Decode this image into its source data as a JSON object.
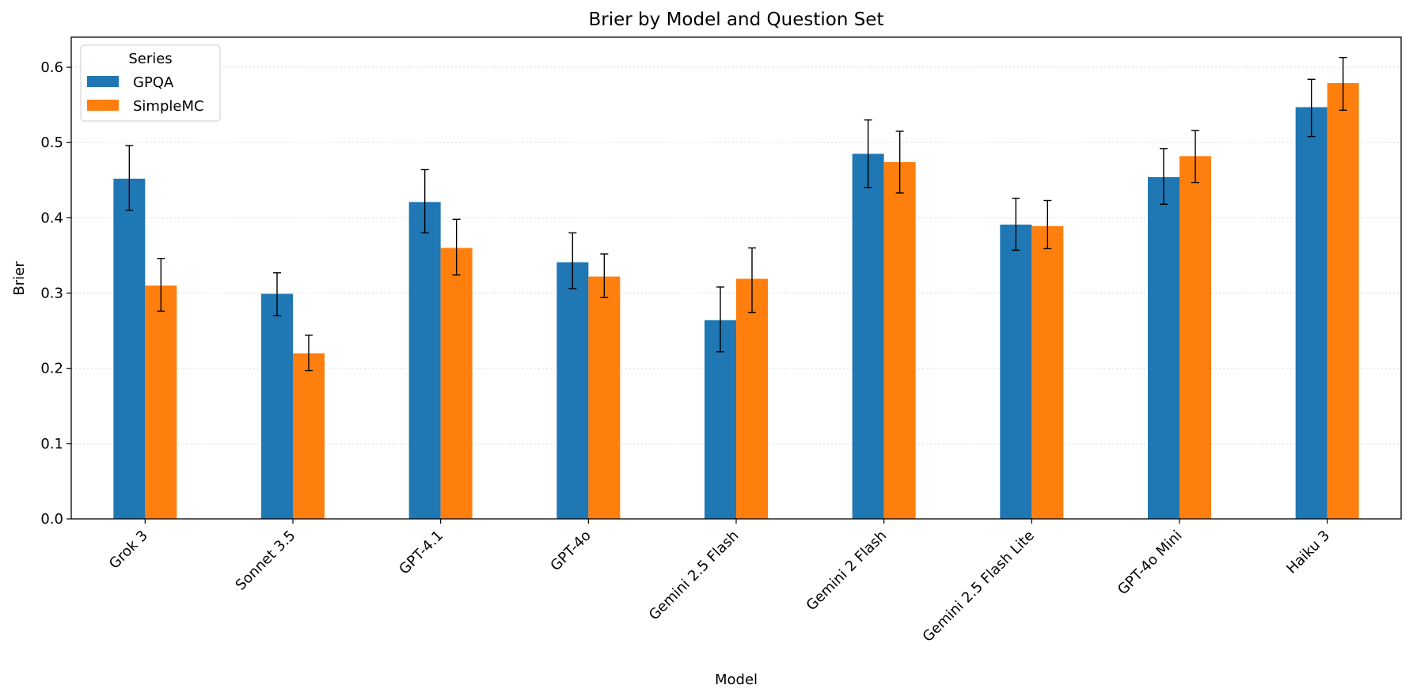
{
  "chart_data": {
    "type": "bar",
    "title": "Brier by Model and Question Set",
    "xlabel": "Model",
    "ylabel": "Brier",
    "ylim": [
      0,
      0.64
    ],
    "yticks": [
      "0.0",
      "0.1",
      "0.2",
      "0.3",
      "0.4",
      "0.5",
      "0.6"
    ],
    "grid": "horizontal dotted",
    "legend": {
      "title": "Series",
      "position": "top-left"
    },
    "categories": [
      "Grok 3",
      "Sonnet 3.5",
      "GPT-4.1",
      "GPT-4o",
      "Gemini 2.5 Flash",
      "Gemini 2 Flash",
      "Gemini 2.5 Flash Lite",
      "GPT-4o Mini",
      "Haiku 3"
    ],
    "series": [
      {
        "name": "GPQA",
        "color": "#1f77b4",
        "values": [
          0.452,
          0.299,
          0.421,
          0.341,
          0.264,
          0.485,
          0.391,
          0.454,
          0.547
        ],
        "err_low": [
          0.41,
          0.27,
          0.38,
          0.306,
          0.222,
          0.44,
          0.357,
          0.418,
          0.508
        ],
        "err_high": [
          0.496,
          0.327,
          0.464,
          0.38,
          0.308,
          0.53,
          0.426,
          0.492,
          0.584
        ]
      },
      {
        "name": "SimpleMC",
        "color": "#ff7f0e",
        "values": [
          0.31,
          0.22,
          0.36,
          0.322,
          0.319,
          0.474,
          0.389,
          0.482,
          0.579
        ],
        "err_low": [
          0.276,
          0.197,
          0.324,
          0.294,
          0.274,
          0.433,
          0.359,
          0.447,
          0.543
        ],
        "err_high": [
          0.346,
          0.244,
          0.398,
          0.352,
          0.36,
          0.515,
          0.423,
          0.516,
          0.613
        ]
      }
    ]
  }
}
